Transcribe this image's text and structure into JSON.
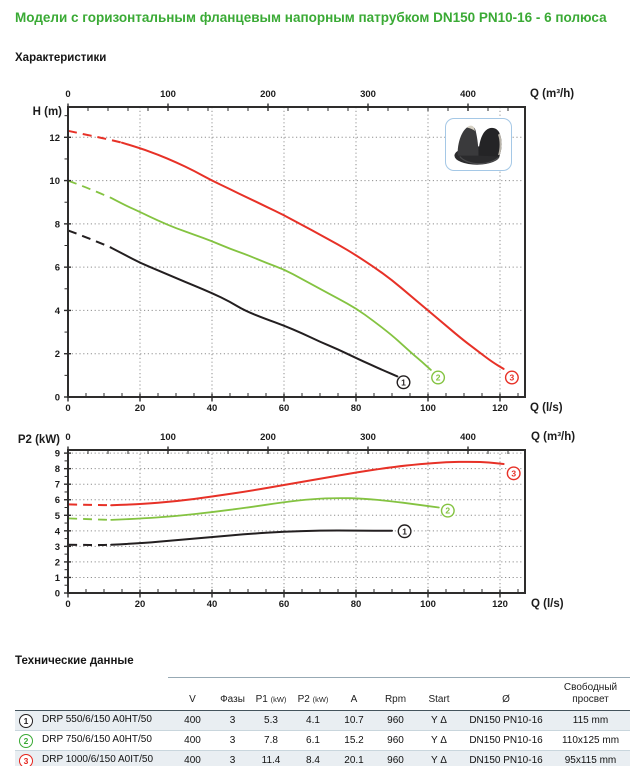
{
  "page": {
    "title": "Модели с горизонтальным фланцевым напорным патрубком DN150 PN10-16 - 6 полюса",
    "section_characteristics": "Характеристики",
    "section_technical": "Технические данные"
  },
  "colors": {
    "title_green": "#3aaa35",
    "curve_black": "#231f20",
    "curve_green": "#84c341",
    "curve_red": "#e73127",
    "grid": "#8f8f8f",
    "axis": "#2e2d2c",
    "table_shade": "#e9eef2",
    "table_rule_dark": "#44535c",
    "impeller_box_border": "#a5c8e6"
  },
  "chart_data": [
    {
      "type": "line",
      "ylabel": "H (m)",
      "x_top_label": "Q (m³/h)",
      "x_bottom_label": "Q (l/s)",
      "ylim": [
        0,
        13.4
      ],
      "xlim_lps": [
        0,
        126.9
      ],
      "y_tick_labels": [
        0,
        2,
        4,
        6,
        8,
        10,
        12
      ],
      "y_minor_step": 1,
      "grid_y": [
        2,
        4,
        6,
        8,
        10,
        12
      ],
      "x_bottom_ticks": [
        0,
        20,
        40,
        60,
        80,
        100,
        120
      ],
      "x_bottom_minor_step": 5,
      "x_top_ticks": [
        0,
        100,
        200,
        300,
        400
      ],
      "x_top_minor_step": 20,
      "grid_x_lps": [
        20,
        40,
        60,
        80,
        100,
        120
      ],
      "legend_position": "end-of-curve markers",
      "series": [
        {
          "name": "DRP 550/6/150 A0HT/50",
          "curve_no": "1",
          "color": "#231f20",
          "width": 2,
          "dashed_points": [
            [
              0,
              7.7
            ],
            [
              4,
              7.45
            ],
            [
              8,
              7.18
            ],
            [
              12,
              6.9
            ]
          ],
          "points": [
            [
              12,
              6.9
            ],
            [
              16,
              6.55
            ],
            [
              20,
              6.2
            ],
            [
              25,
              5.85
            ],
            [
              30,
              5.5
            ],
            [
              35,
              5.15
            ],
            [
              40,
              4.8
            ],
            [
              45,
              4.4
            ],
            [
              49,
              4.0
            ],
            [
              55,
              3.6
            ],
            [
              60,
              3.3
            ],
            [
              65,
              2.95
            ],
            [
              70,
              2.55
            ],
            [
              75,
              2.2
            ],
            [
              80,
              1.8
            ],
            [
              84,
              1.5
            ],
            [
              88,
              1.2
            ],
            [
              91.5,
              0.95
            ]
          ],
          "marker": {
            "q": 93.2,
            "v": 0.68,
            "label": "1"
          }
        },
        {
          "name": "DRP 750/6/150 A0HT/50",
          "curve_no": "2",
          "color": "#84c341",
          "width": 1.8,
          "dashed_points": [
            [
              0,
              10.0
            ],
            [
              4,
              9.75
            ],
            [
              8,
              9.48
            ],
            [
              12,
              9.2
            ]
          ],
          "points": [
            [
              12,
              9.2
            ],
            [
              16,
              8.85
            ],
            [
              20,
              8.55
            ],
            [
              25,
              8.15
            ],
            [
              30,
              7.8
            ],
            [
              35,
              7.5
            ],
            [
              40,
              7.2
            ],
            [
              45,
              6.85
            ],
            [
              50,
              6.55
            ],
            [
              55,
              6.2
            ],
            [
              60,
              5.9
            ],
            [
              65,
              5.45
            ],
            [
              70,
              5.0
            ],
            [
              75,
              4.55
            ],
            [
              80,
              4.1
            ],
            [
              85,
              3.5
            ],
            [
              90,
              2.85
            ],
            [
              93,
              2.4
            ],
            [
              96,
              1.95
            ],
            [
              98.5,
              1.6
            ],
            [
              100.8,
              1.25
            ]
          ],
          "marker": {
            "q": 102.8,
            "v": 0.9,
            "label": "2"
          }
        },
        {
          "name": "DRP 1000/6/150 A0IT/50",
          "curve_no": "3",
          "color": "#e73127",
          "width": 2,
          "dashed_points": [
            [
              0,
              12.3
            ],
            [
              5,
              12.12
            ],
            [
              10,
              11.95
            ],
            [
              15,
              11.75
            ]
          ],
          "points": [
            [
              15,
              11.75
            ],
            [
              20,
              11.5
            ],
            [
              25,
              11.2
            ],
            [
              30,
              10.85
            ],
            [
              35,
              10.45
            ],
            [
              40,
              10.0
            ],
            [
              45,
              9.6
            ],
            [
              50,
              9.2
            ],
            [
              55,
              8.8
            ],
            [
              60,
              8.4
            ],
            [
              65,
              7.95
            ],
            [
              70,
              7.5
            ],
            [
              75,
              7.05
            ],
            [
              80,
              6.55
            ],
            [
              85,
              6.0
            ],
            [
              90,
              5.4
            ],
            [
              95,
              4.7
            ],
            [
              100,
              4.0
            ],
            [
              105,
              3.3
            ],
            [
              110,
              2.6
            ],
            [
              114,
              2.1
            ],
            [
              118,
              1.6
            ],
            [
              121,
              1.3
            ]
          ],
          "marker": {
            "q": 123.3,
            "v": 0.9,
            "label": "3"
          }
        }
      ]
    },
    {
      "type": "line",
      "ylabel": "P2 (kW)",
      "x_top_label": "Q (m³/h)",
      "x_bottom_label": "Q (l/s)",
      "ylim": [
        0,
        9.2
      ],
      "xlim_lps": [
        0,
        126.9
      ],
      "y_tick_labels": [
        0,
        1,
        2,
        3,
        4,
        5,
        6,
        7,
        8,
        9
      ],
      "y_minor_step": 0.5,
      "grid_y": [
        1,
        2,
        3,
        4,
        5,
        6,
        7,
        8,
        9
      ],
      "x_bottom_ticks": [
        0,
        20,
        40,
        60,
        80,
        100,
        120
      ],
      "x_bottom_minor_step": 5,
      "x_top_ticks": [
        0,
        100,
        200,
        300,
        400
      ],
      "x_top_minor_step": 20,
      "grid_x_lps": [
        20,
        40,
        60,
        80,
        100,
        120
      ],
      "legend_position": "end-of-curve markers",
      "series": [
        {
          "name": "DRP 550/6/150 A0HT/50",
          "curve_no": "1",
          "color": "#231f20",
          "width": 2,
          "dashed_points": [
            [
              0,
              3.1
            ],
            [
              4,
              3.1
            ],
            [
              8,
              3.08
            ],
            [
              12,
              3.1
            ]
          ],
          "points": [
            [
              12,
              3.1
            ],
            [
              20,
              3.2
            ],
            [
              30,
              3.4
            ],
            [
              40,
              3.6
            ],
            [
              50,
              3.8
            ],
            [
              60,
              3.95
            ],
            [
              70,
              4.02
            ],
            [
              80,
              4.02
            ],
            [
              90,
              4.0
            ]
          ],
          "marker": {
            "q": 93.5,
            "v": 3.97,
            "label": "1"
          }
        },
        {
          "name": "DRP 750/6/150 A0HT/50",
          "curve_no": "2",
          "color": "#84c341",
          "width": 1.8,
          "dashed_points": [
            [
              0,
              4.8
            ],
            [
              4,
              4.77
            ],
            [
              8,
              4.73
            ],
            [
              12,
              4.7
            ]
          ],
          "points": [
            [
              12,
              4.7
            ],
            [
              20,
              4.78
            ],
            [
              30,
              4.95
            ],
            [
              40,
              5.2
            ],
            [
              50,
              5.5
            ],
            [
              60,
              5.85
            ],
            [
              68,
              6.05
            ],
            [
              75,
              6.12
            ],
            [
              82,
              6.08
            ],
            [
              90,
              5.9
            ],
            [
              96,
              5.72
            ],
            [
              103,
              5.5
            ]
          ],
          "marker": {
            "q": 105.5,
            "v": 5.3,
            "label": "2"
          }
        },
        {
          "name": "DRP 1000/6/150 A0IT/50",
          "curve_no": "3",
          "color": "#e73127",
          "width": 2,
          "dashed_points": [
            [
              0,
              5.7
            ],
            [
              4,
              5.68
            ],
            [
              8,
              5.66
            ],
            [
              12,
              5.65
            ]
          ],
          "points": [
            [
              12,
              5.65
            ],
            [
              20,
              5.7
            ],
            [
              30,
              5.9
            ],
            [
              40,
              6.2
            ],
            [
              50,
              6.55
            ],
            [
              60,
              6.95
            ],
            [
              70,
              7.35
            ],
            [
              80,
              7.75
            ],
            [
              90,
              8.1
            ],
            [
              98,
              8.3
            ],
            [
              105,
              8.42
            ],
            [
              112,
              8.45
            ],
            [
              117,
              8.4
            ],
            [
              121,
              8.3
            ]
          ],
          "marker": {
            "q": 123.8,
            "v": 7.7,
            "label": "3"
          }
        }
      ]
    }
  ],
  "table": {
    "heading": "Технические данные",
    "columns": [
      {
        "key": "model",
        "label": ""
      },
      {
        "key": "v",
        "label": "V"
      },
      {
        "key": "phases",
        "label": "Фазы"
      },
      {
        "key": "p1",
        "label": "P1 ",
        "unit": "(kW)"
      },
      {
        "key": "p2",
        "label": "P2 ",
        "unit": "(kW)"
      },
      {
        "key": "a",
        "label": "A"
      },
      {
        "key": "rpm",
        "label": "Rpm"
      },
      {
        "key": "start",
        "label": "Start"
      },
      {
        "key": "dn",
        "label": "Ø"
      },
      {
        "key": "free_passage",
        "label": "Свободный\nпросвет"
      }
    ],
    "rows": [
      {
        "num": "1",
        "color": "#231f20",
        "model": "DRP 550/6/150 A0HT/50",
        "v": "400",
        "phases": "3",
        "p1": "5.3",
        "p2": "4.1",
        "a": "10.7",
        "rpm": "960",
        "start": "Y Δ",
        "dn": "DN150 PN10-16",
        "free_passage": "115 mm"
      },
      {
        "num": "2",
        "color": "#3aaa35",
        "model": "DRP 750/6/150 A0HT/50",
        "v": "400",
        "phases": "3",
        "p1": "7.8",
        "p2": "6.1",
        "a": "15.2",
        "rpm": "960",
        "start": "Y Δ",
        "dn": "DN150 PN10-16",
        "free_passage": "110x125 mm"
      },
      {
        "num": "3",
        "color": "#e5231b",
        "model": "DRP 1000/6/150 A0IT/50",
        "v": "400",
        "phases": "3",
        "p1": "11.4",
        "p2": "8.4",
        "a": "20.1",
        "rpm": "960",
        "start": "Y Δ",
        "dn": "DN150 PN10-16",
        "free_passage": "95x115 mm"
      }
    ]
  }
}
